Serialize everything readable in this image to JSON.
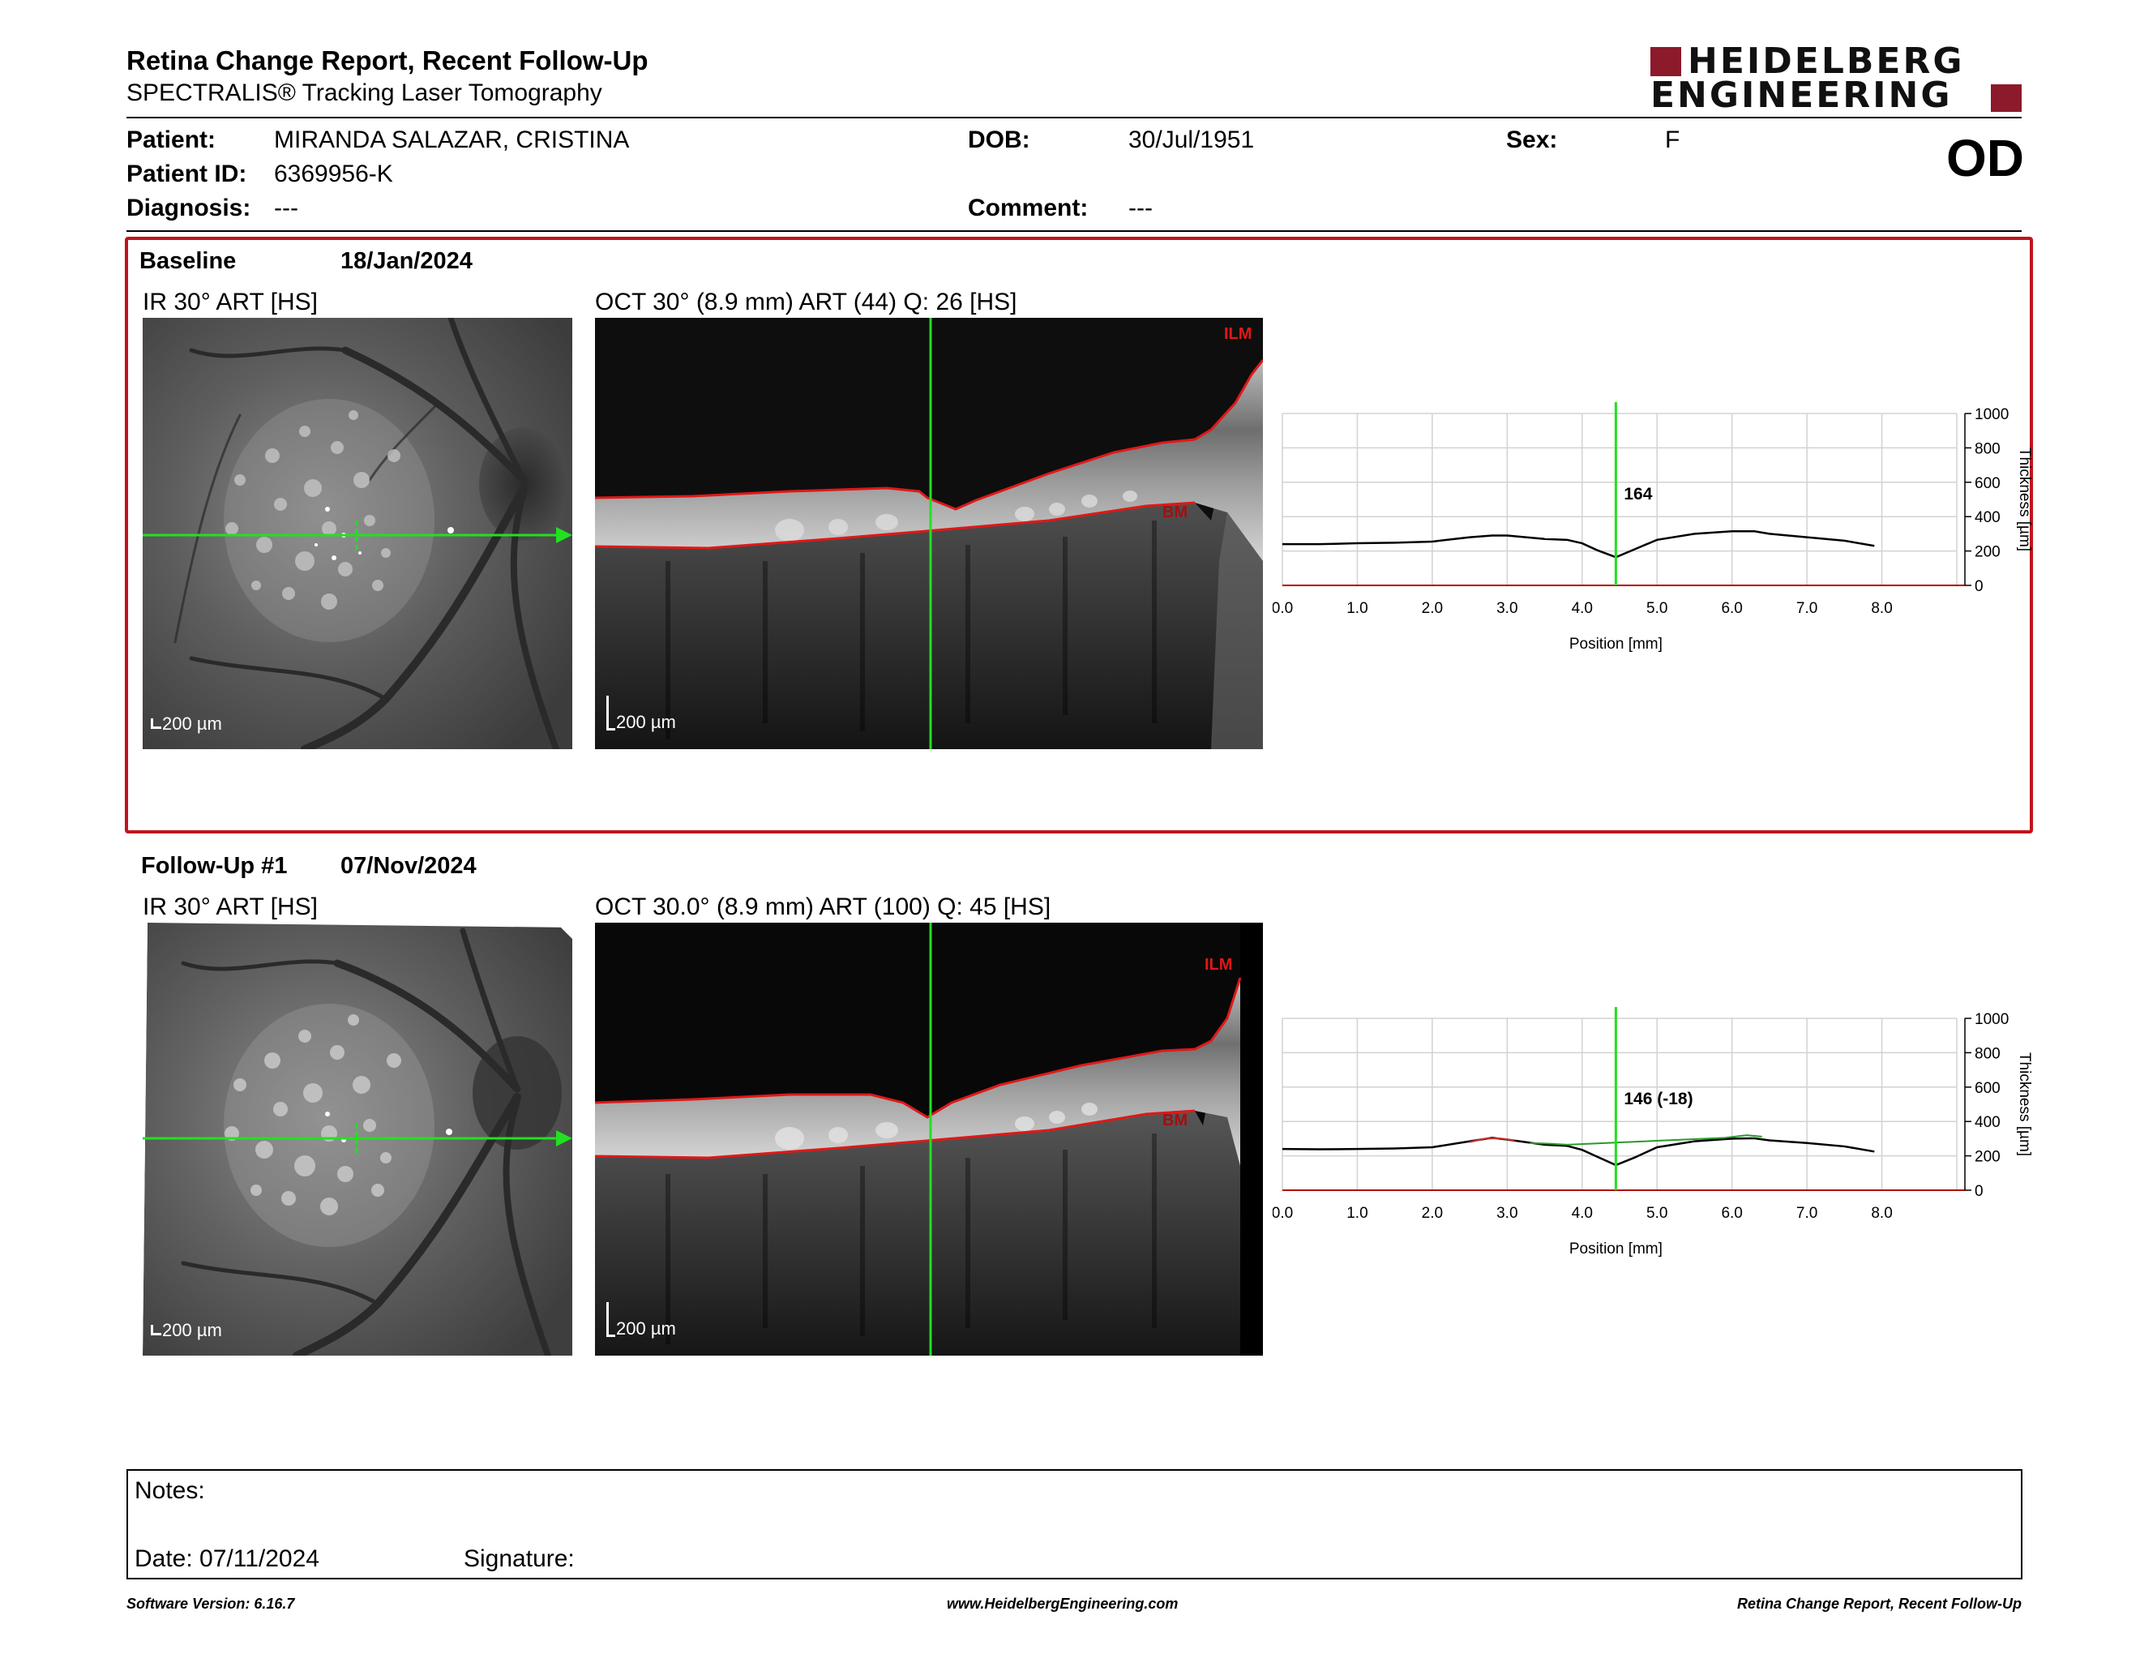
{
  "header": {
    "title": "Retina Change Report, Recent Follow-Up",
    "subtitle": "SPECTRALIS® Tracking Laser Tomography",
    "brand_line1": "HEIDELBERG",
    "brand_line2": "ENGINEERING",
    "brand_color": "#8c1a2a"
  },
  "patient": {
    "patient_label": "Patient:",
    "patient_name": "MIRANDA SALAZAR, CRISTINA",
    "id_label": "Patient ID:",
    "id_value": "6369956-K",
    "diagnosis_label": "Diagnosis:",
    "diagnosis_value": "---",
    "dob_label": "DOB:",
    "dob_value": "30/Jul/1951",
    "comment_label": "Comment:",
    "comment_value": "---",
    "sex_label": "Sex:",
    "sex_value": "F",
    "eye": "OD"
  },
  "baseline": {
    "label": "Baseline",
    "date": "18/Jan/2024",
    "ir_title": "IR 30° ART [HS]",
    "oct_title": "OCT 30° (8.9 mm) ART (44) Q: 26 [HS]",
    "ir_scale": "200 µm",
    "oct_scale": "200 µm",
    "ilm_label": "ILM",
    "bm_label": "BM",
    "highlight_color": "#c0141c"
  },
  "followup": {
    "label": "Follow-Up #1",
    "date": "07/Nov/2024",
    "ir_title": "IR 30° ART [HS]",
    "oct_title": "OCT 30.0° (8.9 mm) ART (100) Q: 45 [HS]",
    "ir_scale": "200 µm",
    "oct_scale": "200 µm",
    "ilm_label": "ILM",
    "bm_label": "BM"
  },
  "chart_data": [
    {
      "type": "line",
      "xlabel": "Position [mm]",
      "ylabel": "Thickness [µm]",
      "xlim": [
        0,
        9
      ],
      "ylim": [
        0,
        1000
      ],
      "x_ticks": [
        "0.0",
        "1.0",
        "2.0",
        "3.0",
        "4.0",
        "5.0",
        "6.0",
        "7.0",
        "8.0"
      ],
      "y_ticks": [
        "0",
        "200",
        "400",
        "600",
        "800",
        "1000"
      ],
      "cursor_x": 4.45,
      "cursor_label": "164",
      "grid": true,
      "series": [
        {
          "color": "#000000",
          "x": [
            0.0,
            0.5,
            1.0,
            1.5,
            2.0,
            2.5,
            2.8,
            3.0,
            3.5,
            3.8,
            4.0,
            4.2,
            4.45,
            4.7,
            5.0,
            5.5,
            6.0,
            6.3,
            6.5,
            7.0,
            7.5,
            7.9
          ],
          "y": [
            240,
            240,
            245,
            248,
            255,
            280,
            290,
            290,
            270,
            265,
            245,
            205,
            164,
            210,
            265,
            300,
            315,
            315,
            300,
            280,
            260,
            230
          ]
        }
      ]
    },
    {
      "type": "line",
      "xlabel": "Position [mm]",
      "ylabel": "Thickness [µm]",
      "xlim": [
        0,
        9
      ],
      "ylim": [
        0,
        1000
      ],
      "x_ticks": [
        "0.0",
        "1.0",
        "2.0",
        "3.0",
        "4.0",
        "5.0",
        "6.0",
        "7.0",
        "8.0"
      ],
      "y_ticks": [
        "0",
        "200",
        "400",
        "600",
        "800",
        "1000"
      ],
      "cursor_x": 4.45,
      "cursor_label": "146 (-18)",
      "grid": true,
      "series": [
        {
          "color": "#000000",
          "x": [
            0.0,
            0.5,
            1.0,
            1.5,
            2.0,
            2.5,
            2.8,
            3.0,
            3.5,
            3.8,
            4.0,
            4.2,
            4.45,
            4.7,
            5.0,
            5.5,
            6.0,
            6.3,
            6.5,
            7.0,
            7.5,
            7.9
          ],
          "y": [
            240,
            238,
            240,
            243,
            250,
            285,
            305,
            295,
            265,
            258,
            235,
            195,
            146,
            190,
            250,
            285,
            300,
            302,
            290,
            275,
            255,
            225
          ]
        },
        {
          "color": "#d03030",
          "x": [
            2.5,
            2.7,
            2.9,
            3.1
          ],
          "y": [
            280,
            300,
            302,
            290
          ]
        },
        {
          "color": "#2a9a2a",
          "x": [
            3.3,
            3.6,
            3.8,
            5.9,
            6.2,
            6.4
          ],
          "y": [
            275,
            270,
            265,
            305,
            320,
            312
          ]
        }
      ]
    }
  ],
  "notes": {
    "notes_label": "Notes:",
    "date_label": "Date: 07/11/2024",
    "signature_label": "Signature:"
  },
  "footer": {
    "software": "Software Version: 6.16.7",
    "website": "www.HeidelbergEngineering.com",
    "report_name": "Retina Change Report, Recent Follow-Up"
  }
}
